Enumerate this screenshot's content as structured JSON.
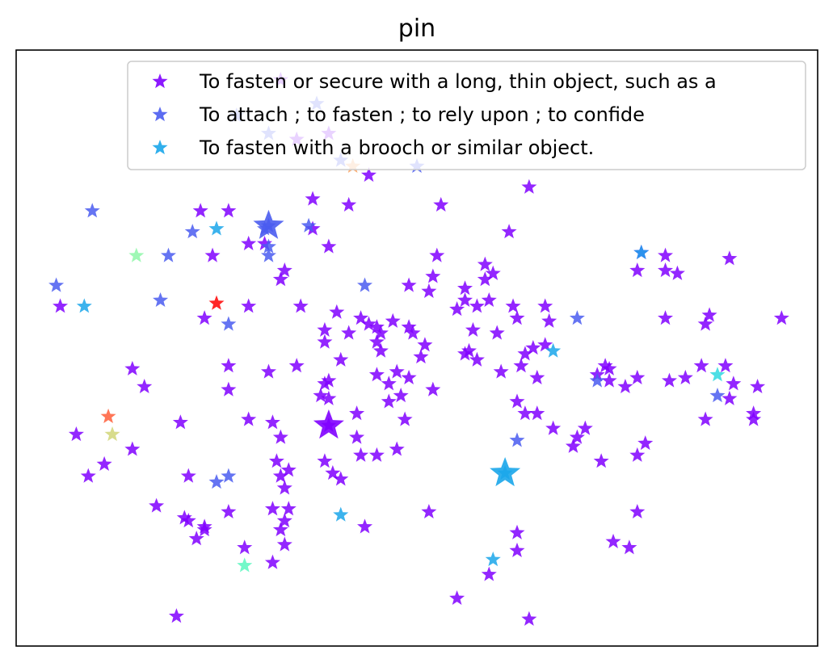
{
  "chart_data": {
    "type": "scatter",
    "title": "pin",
    "xlabel": "",
    "ylabel": "",
    "xlim": [
      0,
      100
    ],
    "ylim": [
      0,
      100
    ],
    "grid": false,
    "ticks": false,
    "marker": "star",
    "legend": {
      "placement": "top-right",
      "entries": [
        {
          "label": "To fasten or secure with a long, thin object, such as a",
          "color": "#8000ff"
        },
        {
          "label": "To attach ; to fasten ; to rely upon ; to confide",
          "color": "#4a5cf0"
        },
        {
          "label": "To fasten with a brooch or similar object.",
          "color": "#1aa6ea"
        }
      ]
    },
    "series": [
      {
        "color": "#8000ff",
        "points": [
          [
            33.0,
            95.0
          ],
          [
            35.0,
            85.0
          ],
          [
            39.0,
            86.0
          ],
          [
            44.0,
            79.0
          ],
          [
            37.0,
            75.0
          ],
          [
            41.5,
            74.0
          ],
          [
            23.0,
            73.0
          ],
          [
            26.5,
            73.0
          ],
          [
            53.0,
            74.0
          ],
          [
            64.0,
            77.0
          ],
          [
            37.0,
            70.0
          ],
          [
            39.0,
            67.0
          ],
          [
            29.0,
            67.5
          ],
          [
            31.0,
            67.5
          ],
          [
            24.5,
            65.5
          ],
          [
            61.5,
            69.5
          ],
          [
            52.5,
            65.5
          ],
          [
            58.5,
            64.0
          ],
          [
            59.5,
            62.5
          ],
          [
            58.5,
            61.5
          ],
          [
            52.0,
            62.0
          ],
          [
            51.5,
            59.5
          ],
          [
            49.0,
            60.5
          ],
          [
            56.0,
            60.0
          ],
          [
            33.5,
            63.0
          ],
          [
            33.0,
            61.5
          ],
          [
            43.0,
            55.0
          ],
          [
            78.0,
            66.0
          ],
          [
            81.0,
            65.5
          ],
          [
            89.0,
            65.0
          ],
          [
            77.5,
            63.0
          ],
          [
            81.0,
            63.0
          ],
          [
            82.5,
            62.5
          ],
          [
            5.5,
            57.0
          ],
          [
            23.5,
            55.0
          ],
          [
            29.0,
            57.0
          ],
          [
            35.5,
            57.0
          ],
          [
            40.0,
            56.0
          ],
          [
            44.0,
            54.0
          ],
          [
            45.0,
            53.5
          ],
          [
            47.0,
            54.5
          ],
          [
            45.5,
            52.5
          ],
          [
            45.0,
            51.0
          ],
          [
            49.0,
            53.5
          ],
          [
            38.5,
            53.0
          ],
          [
            41.5,
            52.5
          ],
          [
            56.0,
            58.0
          ],
          [
            55.0,
            56.5
          ],
          [
            57.5,
            57.0
          ],
          [
            59.0,
            58.0
          ],
          [
            62.0,
            57.0
          ],
          [
            62.5,
            55.0
          ],
          [
            66.0,
            57.0
          ],
          [
            66.5,
            54.5
          ],
          [
            60.0,
            52.5
          ],
          [
            57.0,
            53.0
          ],
          [
            81.0,
            55.0
          ],
          [
            86.0,
            54.0
          ],
          [
            86.5,
            55.5
          ],
          [
            95.5,
            55.0
          ],
          [
            49.5,
            52.5
          ],
          [
            51.0,
            50.5
          ],
          [
            45.5,
            49.5
          ],
          [
            40.5,
            48.0
          ],
          [
            38.5,
            51.0
          ],
          [
            26.5,
            47.0
          ],
          [
            35.0,
            47.0
          ],
          [
            56.5,
            49.5
          ],
          [
            56.0,
            49.0
          ],
          [
            57.5,
            48.0
          ],
          [
            63.5,
            49.0
          ],
          [
            64.5,
            50.0
          ],
          [
            66.0,
            50.5
          ],
          [
            63.0,
            47.0
          ],
          [
            60.5,
            46.0
          ],
          [
            65.0,
            45.0
          ],
          [
            50.5,
            48.5
          ],
          [
            47.5,
            46.0
          ],
          [
            45.0,
            45.5
          ],
          [
            39.0,
            44.5
          ],
          [
            38.5,
            44.0
          ],
          [
            49.0,
            45.0
          ],
          [
            46.5,
            44.0
          ],
          [
            31.5,
            46.0
          ],
          [
            14.5,
            46.5
          ],
          [
            16.0,
            43.5
          ],
          [
            26.5,
            43.0
          ],
          [
            38.0,
            42.0
          ],
          [
            39.0,
            41.5
          ],
          [
            48.0,
            42.0
          ],
          [
            46.5,
            41.0
          ],
          [
            52.0,
            43.0
          ],
          [
            62.5,
            41.0
          ],
          [
            63.5,
            39.0
          ],
          [
            65.0,
            39.0
          ],
          [
            73.5,
            47.0
          ],
          [
            74.0,
            46.5
          ],
          [
            72.5,
            45.5
          ],
          [
            74.0,
            44.5
          ],
          [
            76.0,
            43.5
          ],
          [
            77.5,
            45.0
          ],
          [
            81.5,
            44.5
          ],
          [
            83.5,
            45.0
          ],
          [
            85.5,
            47.0
          ],
          [
            88.5,
            47.0
          ],
          [
            89.5,
            44.0
          ],
          [
            92.5,
            43.5
          ],
          [
            89.0,
            41.5
          ],
          [
            92.0,
            39.0
          ],
          [
            42.5,
            39.0
          ],
          [
            48.5,
            38.0
          ],
          [
            20.5,
            37.5
          ],
          [
            29.0,
            38.0
          ],
          [
            32.0,
            37.5
          ],
          [
            33.0,
            35.0
          ],
          [
            42.5,
            35.0
          ],
          [
            43.0,
            32.0
          ],
          [
            45.0,
            32.0
          ],
          [
            47.5,
            33.0
          ],
          [
            38.5,
            31.0
          ],
          [
            39.5,
            29.0
          ],
          [
            40.5,
            28.0
          ],
          [
            7.5,
            35.5
          ],
          [
            14.5,
            33.0
          ],
          [
            11.0,
            30.5
          ],
          [
            9.0,
            28.5
          ],
          [
            21.5,
            28.5
          ],
          [
            32.5,
            31.0
          ],
          [
            33.0,
            28.5
          ],
          [
            34.0,
            29.5
          ],
          [
            33.5,
            26.5
          ],
          [
            67.0,
            36.5
          ],
          [
            71.0,
            36.5
          ],
          [
            70.0,
            35.0
          ],
          [
            69.5,
            33.5
          ],
          [
            78.5,
            34.0
          ],
          [
            77.5,
            32.0
          ],
          [
            73.0,
            31.0
          ],
          [
            86.0,
            38.0
          ],
          [
            92.0,
            38.0
          ],
          [
            17.5,
            23.5
          ],
          [
            21.0,
            21.5
          ],
          [
            21.5,
            21.0
          ],
          [
            23.5,
            20.0
          ],
          [
            23.5,
            19.5
          ],
          [
            22.5,
            18.0
          ],
          [
            26.5,
            22.5
          ],
          [
            32.0,
            23.0
          ],
          [
            34.0,
            23.0
          ],
          [
            33.5,
            21.0
          ],
          [
            33.0,
            19.5
          ],
          [
            33.5,
            17.0
          ],
          [
            28.5,
            16.5
          ],
          [
            32.0,
            14.0
          ],
          [
            43.5,
            20.0
          ],
          [
            51.5,
            22.5
          ],
          [
            62.5,
            19.0
          ],
          [
            62.5,
            16.0
          ],
          [
            59.0,
            12.0
          ],
          [
            55.0,
            8.0
          ],
          [
            64.0,
            4.5
          ],
          [
            74.5,
            17.5
          ],
          [
            76.5,
            16.5
          ],
          [
            77.5,
            22.5
          ],
          [
            20.0,
            5.0
          ],
          [
            39.0,
            37.0
          ]
        ]
      },
      {
        "color": "#4a5cf0",
        "points": [
          [
            37.5,
            91.0
          ],
          [
            27.5,
            89.0
          ],
          [
            31.5,
            86.0
          ],
          [
            40.5,
            81.5
          ],
          [
            50.0,
            80.5
          ],
          [
            9.5,
            73.0
          ],
          [
            22.0,
            69.5
          ],
          [
            31.0,
            70.0
          ],
          [
            36.5,
            70.5
          ],
          [
            31.5,
            67.0
          ],
          [
            19.0,
            65.5
          ],
          [
            31.5,
            65.5
          ],
          [
            5.0,
            60.5
          ],
          [
            18.0,
            58.0
          ],
          [
            43.5,
            60.5
          ],
          [
            26.5,
            54.0
          ],
          [
            70.0,
            55.0
          ],
          [
            72.5,
            44.5
          ],
          [
            87.5,
            42.0
          ],
          [
            62.5,
            34.5
          ],
          [
            26.5,
            28.5
          ],
          [
            25.0,
            27.5
          ],
          [
            31.5,
            70.5
          ]
        ]
      },
      {
        "color": "#1aa6ea",
        "points": [
          [
            25.0,
            70.0
          ],
          [
            78.0,
            66.0
          ],
          [
            8.5,
            57.0
          ],
          [
            67.0,
            49.5
          ],
          [
            40.5,
            22.0
          ],
          [
            59.5,
            14.5
          ],
          [
            61.0,
            29.0
          ]
        ]
      },
      {
        "color": "#f9a05c",
        "points": [
          [
            42.0,
            80.5
          ]
        ]
      },
      {
        "color": "#2ed9e0",
        "points": [
          [
            87.5,
            45.5
          ]
        ]
      },
      {
        "color": "#8ef7a8",
        "points": [
          [
            15.0,
            65.5
          ]
        ]
      },
      {
        "color": "#ff0000",
        "points": [
          [
            25.0,
            57.5
          ]
        ]
      },
      {
        "color": "#ff5e3a",
        "points": [
          [
            11.5,
            38.5
          ]
        ]
      },
      {
        "color": "#d1d678",
        "points": [
          [
            12.0,
            35.5
          ]
        ]
      },
      {
        "color": "#5cf7c0",
        "points": [
          [
            28.5,
            13.5
          ]
        ]
      }
    ],
    "highlights": [
      {
        "color": "#4a5cf0",
        "x": 31.5,
        "y": 70.5
      },
      {
        "color": "#8000ff",
        "x": 39.0,
        "y": 37.0
      },
      {
        "color": "#1aa6ea",
        "x": 61.0,
        "y": 29.0
      }
    ]
  }
}
